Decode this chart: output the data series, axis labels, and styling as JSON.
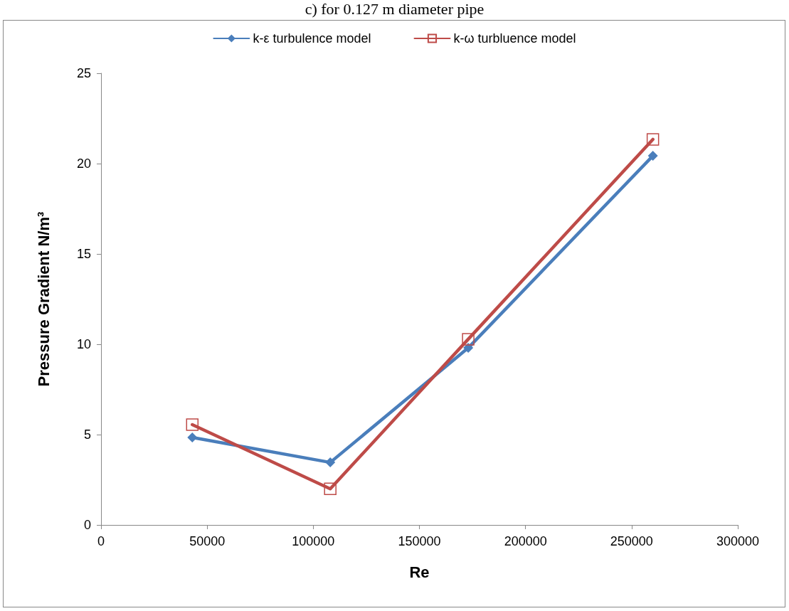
{
  "chart_data": {
    "type": "line",
    "title": "c) for 0.127 m diameter pipe",
    "xlabel": "Re",
    "ylabel": "Pressure Gradient N/m³",
    "x": [
      43000,
      108000,
      173000,
      260000
    ],
    "series": [
      {
        "name": "k-ε turbulence model",
        "color": "#4a7ebb",
        "marker": "diamond",
        "values": [
          4.84,
          3.46,
          9.8,
          20.43
        ]
      },
      {
        "name": "k-ω turbluence model",
        "color": "#be4b48",
        "marker": "square",
        "values": [
          5.55,
          2.0,
          10.28,
          21.34
        ]
      }
    ],
    "xlim": [
      0,
      300000
    ],
    "xticks": [
      0,
      50000,
      100000,
      150000,
      200000,
      250000,
      300000
    ],
    "ylim": [
      0,
      25
    ],
    "yticks": [
      0,
      5,
      10,
      15,
      20,
      25
    ],
    "grid": false,
    "legend": "top"
  }
}
